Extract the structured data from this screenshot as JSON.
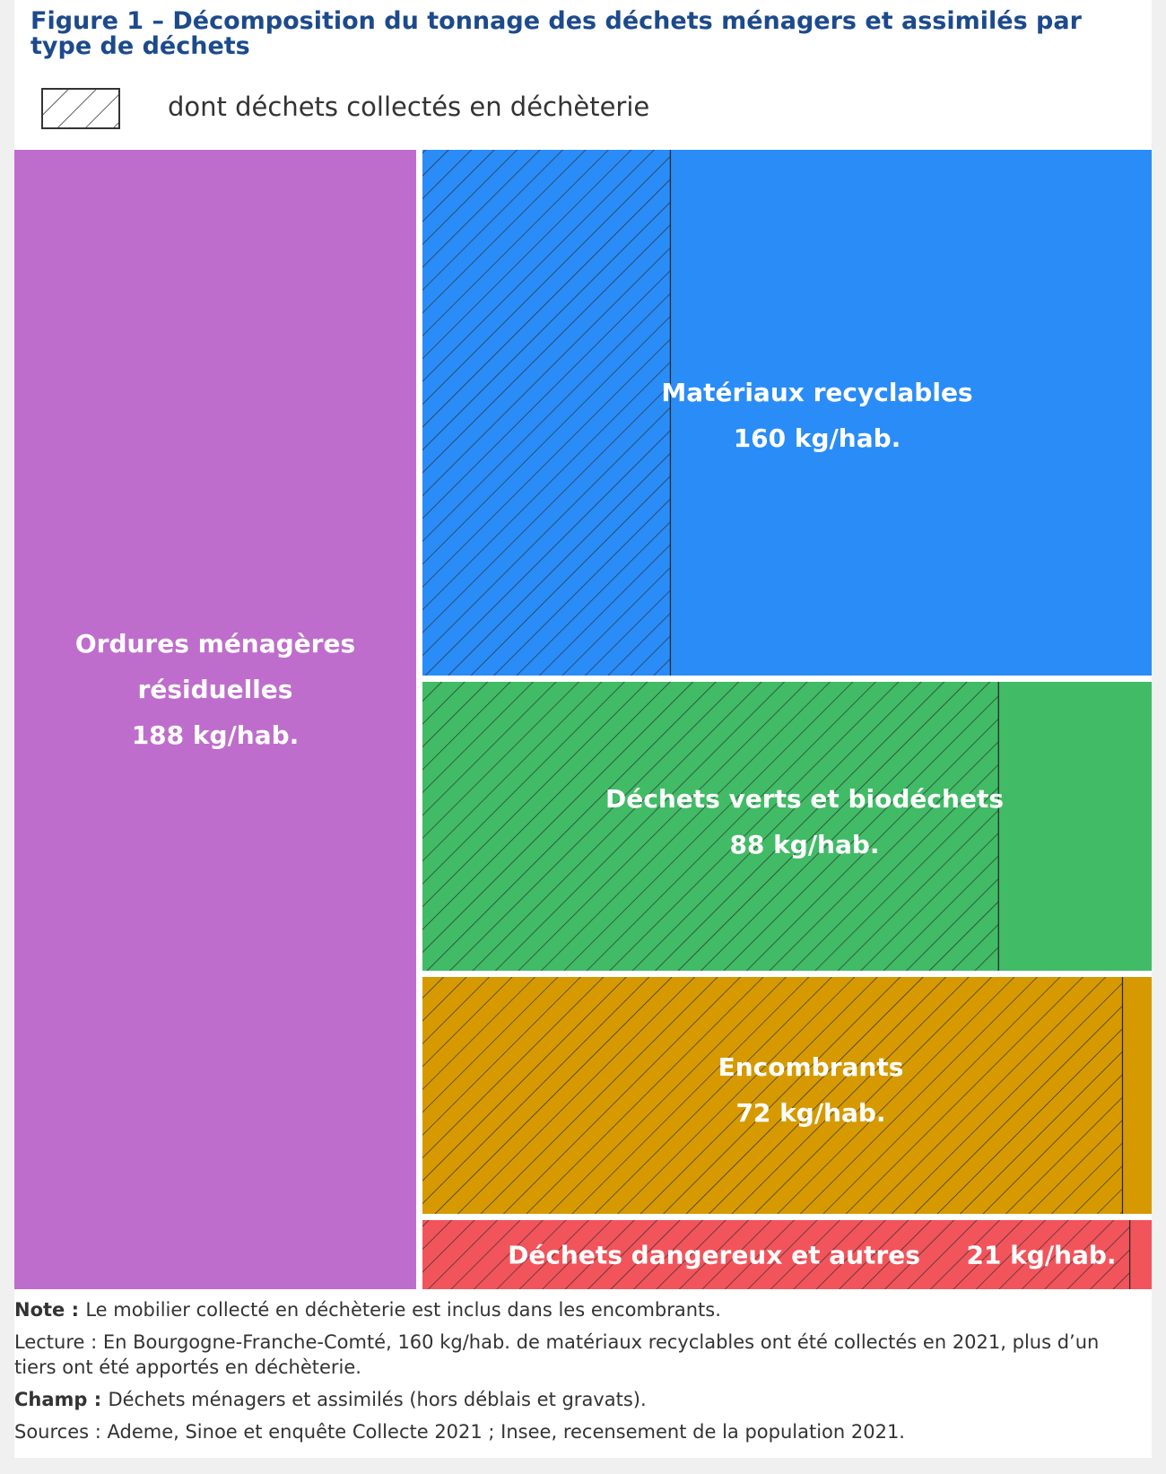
{
  "title": "Figure 1 – Décomposition du tonnage des déchets ménagers et assimilés par type de déchets",
  "legend": {
    "label": "dont déchets collectés en déchèterie",
    "pattern": "hatch"
  },
  "colors": {
    "ordures": "#bf6dcc",
    "recyclables": "#2a8cf7",
    "verts": "#41bb66",
    "encombrants": "#d69a00",
    "dangereux": "#f2545b",
    "title": "#1c4a8c"
  },
  "chart_data": {
    "type": "treemap",
    "unit": "kg/hab.",
    "categories": [
      {
        "key": "ordures",
        "label": "Ordures ménagères résiduelles",
        "value_label": "188 kg/hab.",
        "value": 188,
        "decheterie_share": 0
      },
      {
        "key": "recyclables",
        "label": "Matériaux recyclables",
        "value_label": "160 kg/hab.",
        "value": 160,
        "decheterie_share": 0.34
      },
      {
        "key": "verts",
        "label": "Déchets verts et biodéchets",
        "value_label": "88 kg/hab.",
        "value": 88,
        "decheterie_share": 0.79
      },
      {
        "key": "encombrants",
        "label": "Encombrants",
        "value_label": "72 kg/hab.",
        "value": 72,
        "decheterie_share": 0.96
      },
      {
        "key": "dangereux",
        "label": "Déchets dangereux et autres",
        "value_label": "21 kg/hab.",
        "value": 21,
        "decheterie_share": 0.97
      }
    ]
  },
  "notes": {
    "note": {
      "prefix": "Note : ",
      "text": "Le mobilier collecté en déchèterie est inclus dans les encombrants."
    },
    "lecture": {
      "prefix": "Lecture : ",
      "text": "En Bourgogne-Franche-Comté, 160 kg/hab. de matériaux recyclables ont été collectés en 2021, plus d’un tiers ont été apportés en déchèterie."
    },
    "champ": {
      "prefix": "Champ : ",
      "text": "Déchets ménagers et assimilés (hors déblais et gravats)."
    },
    "sources": {
      "prefix": "Sources : ",
      "text": "Ademe, Sinoe et enquête Collecte 2021 ; Insee, recensement de la population 2021."
    }
  }
}
